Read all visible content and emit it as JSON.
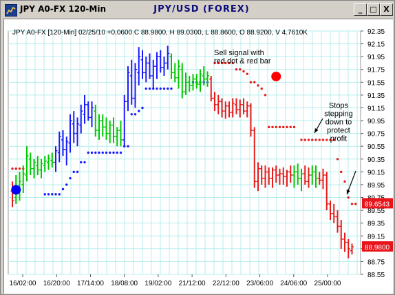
{
  "window": {
    "title": "JPY A0-FX 120-Min",
    "chart_title": "JPY/USD (FOREX)",
    "buttons": {
      "minimize": "_",
      "maximize": "□",
      "close": "X"
    }
  },
  "chart_data": {
    "type": "bar",
    "subtype": "ohlc-price-bars-with-trailing-stop-dots",
    "header_text": "JPY A0-FX [120-Min] 02/25/10 +0.0600 C 88.9800, H 89.0300, L 88.8600, O 88.9200, V 4.7610K",
    "x_tick_labels": [
      "16/02:00",
      "16/20:00",
      "17/14:00",
      "18/08:00",
      "19/02:00",
      "21/12:00",
      "22/12:00",
      "23/06:00",
      "24/06:00",
      "25/00:00"
    ],
    "y_tick_labels": [
      "92.35",
      "92.15",
      "91.95",
      "91.75",
      "91.55",
      "91.35",
      "91.15",
      "90.95",
      "90.75",
      "90.55",
      "90.35",
      "90.15",
      "89.95",
      "89.75",
      "89.55",
      "89.35",
      "89.15",
      "88.95",
      "88.75",
      "88.55"
    ],
    "ylim": [
      88.55,
      92.35
    ],
    "grid": true,
    "price_labels": [
      {
        "value": 89.6543,
        "text": "89.6543",
        "color": "#e8141b"
      },
      {
        "value": 88.98,
        "text": "88.9800",
        "color": "#e8141b"
      }
    ],
    "annotations": [
      {
        "text": [
          "Sell signal with",
          "red dot & red bar"
        ],
        "value": 91.9
      },
      {
        "text": [
          "Stops",
          "stepping",
          "down to",
          "protect",
          "profit"
        ],
        "value": 91.12
      }
    ],
    "signal_markers": [
      {
        "color": "#0000ff",
        "index": 1,
        "value": 89.87
      },
      {
        "color": "#ff0000",
        "index": 73,
        "value": 91.64
      }
    ],
    "colors": {
      "up_bars": "#00c800",
      "down_bars": "#1a1aff",
      "sell_bars": "#e81a1a",
      "stop_dots_red": "#e81a1a",
      "stop_dots_blue": "#1a1aff",
      "grid": "#b4ecec"
    },
    "price_bars": [
      {
        "c": "red",
        "o": 89.85,
        "h": 90.0,
        "l": 89.6,
        "cl": 89.7
      },
      {
        "c": "green",
        "o": 89.75,
        "h": 90.1,
        "l": 89.65,
        "cl": 89.9
      },
      {
        "c": "green",
        "o": 89.88,
        "h": 90.15,
        "l": 89.7,
        "cl": 90.0
      },
      {
        "c": "green",
        "o": 89.95,
        "h": 90.25,
        "l": 89.82,
        "cl": 90.12
      },
      {
        "c": "green",
        "o": 90.1,
        "h": 90.55,
        "l": 90.0,
        "cl": 90.4
      },
      {
        "c": "green",
        "o": 90.35,
        "h": 90.45,
        "l": 90.1,
        "cl": 90.2
      },
      {
        "c": "green",
        "o": 90.2,
        "h": 90.35,
        "l": 90.05,
        "cl": 90.3
      },
      {
        "c": "green",
        "o": 90.25,
        "h": 90.4,
        "l": 90.1,
        "cl": 90.18
      },
      {
        "c": "green",
        "o": 90.18,
        "h": 90.35,
        "l": 90.05,
        "cl": 90.28
      },
      {
        "c": "green",
        "o": 90.25,
        "h": 90.4,
        "l": 90.15,
        "cl": 90.32
      },
      {
        "c": "green",
        "o": 90.3,
        "h": 90.42,
        "l": 90.18,
        "cl": 90.36
      },
      {
        "c": "green",
        "o": 90.33,
        "h": 90.45,
        "l": 90.22,
        "cl": 90.3
      },
      {
        "c": "blue",
        "o": 90.3,
        "h": 90.55,
        "l": 90.15,
        "cl": 90.48
      },
      {
        "c": "blue",
        "o": 90.45,
        "h": 90.78,
        "l": 90.3,
        "cl": 90.7
      },
      {
        "c": "blue",
        "o": 90.65,
        "h": 90.8,
        "l": 90.4,
        "cl": 90.5
      },
      {
        "c": "blue",
        "o": 90.5,
        "h": 90.7,
        "l": 90.25,
        "cl": 90.62
      },
      {
        "c": "blue",
        "o": 90.6,
        "h": 91.05,
        "l": 90.45,
        "cl": 90.95
      },
      {
        "c": "blue",
        "o": 90.9,
        "h": 91.1,
        "l": 90.6,
        "cl": 90.75
      },
      {
        "c": "blue",
        "o": 90.75,
        "h": 91.0,
        "l": 90.55,
        "cl": 90.9
      },
      {
        "c": "blue",
        "o": 90.88,
        "h": 91.2,
        "l": 90.75,
        "cl": 91.1
      },
      {
        "c": "blue",
        "o": 91.05,
        "h": 91.35,
        "l": 90.9,
        "cl": 91.2
      },
      {
        "c": "blue",
        "o": 91.2,
        "h": 91.25,
        "l": 90.95,
        "cl": 91.0
      },
      {
        "c": "blue",
        "o": 91.0,
        "h": 91.25,
        "l": 90.85,
        "cl": 91.15
      },
      {
        "c": "green",
        "o": 91.1,
        "h": 91.2,
        "l": 90.7,
        "cl": 90.8
      },
      {
        "c": "green",
        "o": 90.8,
        "h": 91.05,
        "l": 90.65,
        "cl": 90.95
      },
      {
        "c": "green",
        "o": 90.95,
        "h": 91.05,
        "l": 90.7,
        "cl": 90.85
      },
      {
        "c": "green",
        "o": 90.85,
        "h": 91.0,
        "l": 90.65,
        "cl": 90.75
      },
      {
        "c": "green",
        "o": 90.75,
        "h": 90.95,
        "l": 90.6,
        "cl": 90.88
      },
      {
        "c": "green",
        "o": 90.88,
        "h": 91.0,
        "l": 90.6,
        "cl": 90.7
      },
      {
        "c": "green",
        "o": 90.7,
        "h": 90.85,
        "l": 90.55,
        "cl": 90.8
      },
      {
        "c": "green",
        "o": 90.8,
        "h": 90.95,
        "l": 90.55,
        "cl": 90.65
      },
      {
        "c": "blue",
        "o": 90.65,
        "h": 91.35,
        "l": 90.55,
        "cl": 91.25
      },
      {
        "c": "blue",
        "o": 91.25,
        "h": 91.8,
        "l": 91.1,
        "cl": 91.7
      },
      {
        "c": "blue",
        "o": 91.65,
        "h": 91.9,
        "l": 91.2,
        "cl": 91.3
      },
      {
        "c": "blue",
        "o": 91.3,
        "h": 91.85,
        "l": 91.15,
        "cl": 91.75
      },
      {
        "c": "blue",
        "o": 91.7,
        "h": 92.1,
        "l": 91.5,
        "cl": 91.95
      },
      {
        "c": "blue",
        "o": 91.9,
        "h": 92.05,
        "l": 91.6,
        "cl": 91.7
      },
      {
        "c": "blue",
        "o": 91.7,
        "h": 91.95,
        "l": 91.55,
        "cl": 91.85
      },
      {
        "c": "blue",
        "o": 91.85,
        "h": 92.0,
        "l": 91.6,
        "cl": 91.65
      },
      {
        "c": "blue",
        "o": 91.65,
        "h": 91.9,
        "l": 91.45,
        "cl": 91.8
      },
      {
        "c": "blue",
        "o": 91.8,
        "h": 92.02,
        "l": 91.6,
        "cl": 91.95
      },
      {
        "c": "blue",
        "o": 91.95,
        "h": 92.05,
        "l": 91.7,
        "cl": 91.78
      },
      {
        "c": "blue",
        "o": 91.78,
        "h": 91.95,
        "l": 91.65,
        "cl": 91.85
      },
      {
        "c": "blue",
        "o": 91.85,
        "h": 92.12,
        "l": 91.75,
        "cl": 92.0
      },
      {
        "c": "green",
        "o": 91.95,
        "h": 92.0,
        "l": 91.6,
        "cl": 91.7
      },
      {
        "c": "green",
        "o": 91.7,
        "h": 91.85,
        "l": 91.55,
        "cl": 91.62
      },
      {
        "c": "green",
        "o": 91.62,
        "h": 91.9,
        "l": 91.45,
        "cl": 91.8
      },
      {
        "c": "green",
        "o": 91.75,
        "h": 91.85,
        "l": 91.3,
        "cl": 91.4
      },
      {
        "c": "green",
        "o": 91.4,
        "h": 91.7,
        "l": 91.35,
        "cl": 91.55
      },
      {
        "c": "green",
        "o": 91.55,
        "h": 91.65,
        "l": 91.4,
        "cl": 91.5
      },
      {
        "c": "green",
        "o": 91.5,
        "h": 91.68,
        "l": 91.42,
        "cl": 91.6
      },
      {
        "c": "green",
        "o": 91.6,
        "h": 91.68,
        "l": 91.45,
        "cl": 91.52
      },
      {
        "c": "green",
        "o": 91.52,
        "h": 91.75,
        "l": 91.4,
        "cl": 91.68
      },
      {
        "c": "green",
        "o": 91.65,
        "h": 91.8,
        "l": 91.5,
        "cl": 91.6
      },
      {
        "c": "green",
        "o": 91.6,
        "h": 91.72,
        "l": 91.48,
        "cl": 91.65
      },
      {
        "c": "red",
        "o": 91.6,
        "h": 91.65,
        "l": 91.25,
        "cl": 91.3
      },
      {
        "c": "red",
        "o": 91.3,
        "h": 91.4,
        "l": 91.1,
        "cl": 91.2
      },
      {
        "c": "red",
        "o": 91.2,
        "h": 91.35,
        "l": 91.05,
        "cl": 91.25
      },
      {
        "c": "red",
        "o": 91.25,
        "h": 91.3,
        "l": 91.0,
        "cl": 91.1
      },
      {
        "c": "red",
        "o": 91.1,
        "h": 91.25,
        "l": 90.98,
        "cl": 91.18
      },
      {
        "c": "red",
        "o": 91.18,
        "h": 91.25,
        "l": 91.0,
        "cl": 91.08
      },
      {
        "c": "red",
        "o": 91.08,
        "h": 91.3,
        "l": 91.0,
        "cl": 91.22
      },
      {
        "c": "red",
        "o": 91.2,
        "h": 91.3,
        "l": 91.05,
        "cl": 91.12
      },
      {
        "c": "red",
        "o": 91.12,
        "h": 91.28,
        "l": 91.0,
        "cl": 91.2
      },
      {
        "c": "red",
        "o": 91.2,
        "h": 91.3,
        "l": 91.05,
        "cl": 91.1
      },
      {
        "c": "red",
        "o": 91.1,
        "h": 91.25,
        "l": 91.0,
        "cl": 91.18
      },
      {
        "c": "red",
        "o": 91.18,
        "h": 91.22,
        "l": 90.7,
        "cl": 90.8
      },
      {
        "c": "red",
        "o": 90.8,
        "h": 90.85,
        "l": 89.9,
        "cl": 90.0
      },
      {
        "c": "red",
        "o": 90.0,
        "h": 90.3,
        "l": 89.85,
        "cl": 90.2
      },
      {
        "c": "red",
        "o": 90.2,
        "h": 90.25,
        "l": 89.95,
        "cl": 90.05
      },
      {
        "c": "red",
        "o": 90.05,
        "h": 90.25,
        "l": 89.9,
        "cl": 90.15
      },
      {
        "c": "red",
        "o": 90.15,
        "h": 90.22,
        "l": 89.95,
        "cl": 90.05
      },
      {
        "c": "red",
        "o": 90.05,
        "h": 90.22,
        "l": 89.9,
        "cl": 90.18
      },
      {
        "c": "red",
        "o": 90.18,
        "h": 90.25,
        "l": 89.98,
        "cl": 90.1
      },
      {
        "c": "red",
        "o": 90.1,
        "h": 90.2,
        "l": 89.95,
        "cl": 90.12
      },
      {
        "c": "red",
        "o": 90.12,
        "h": 90.22,
        "l": 89.95,
        "cl": 90.08
      },
      {
        "c": "red",
        "o": 90.08,
        "h": 90.18,
        "l": 89.92,
        "cl": 90.15
      },
      {
        "c": "red",
        "o": 90.15,
        "h": 90.25,
        "l": 89.98,
        "cl": 90.1
      },
      {
        "c": "green",
        "o": 90.1,
        "h": 90.25,
        "l": 89.9,
        "cl": 90.15
      },
      {
        "c": "green",
        "o": 90.15,
        "h": 90.28,
        "l": 89.95,
        "cl": 90.05
      },
      {
        "c": "green",
        "o": 90.05,
        "h": 90.2,
        "l": 89.85,
        "cl": 90.12
      },
      {
        "c": "red",
        "o": 90.12,
        "h": 90.25,
        "l": 89.95,
        "cl": 90.0
      },
      {
        "c": "red",
        "o": 90.0,
        "h": 90.22,
        "l": 89.9,
        "cl": 90.1
      },
      {
        "c": "green",
        "o": 90.1,
        "h": 90.25,
        "l": 89.95,
        "cl": 90.15
      },
      {
        "c": "green",
        "o": 90.15,
        "h": 90.25,
        "l": 89.9,
        "cl": 90.05
      },
      {
        "c": "red",
        "o": 90.05,
        "h": 90.15,
        "l": 89.95,
        "cl": 90.02
      },
      {
        "c": "red",
        "o": 90.02,
        "h": 90.2,
        "l": 89.88,
        "cl": 90.1
      },
      {
        "c": "red",
        "o": 90.1,
        "h": 90.15,
        "l": 89.55,
        "cl": 89.65
      },
      {
        "c": "red",
        "o": 89.65,
        "h": 89.7,
        "l": 89.4,
        "cl": 89.5
      },
      {
        "c": "red",
        "o": 89.5,
        "h": 89.65,
        "l": 89.35,
        "cl": 89.45
      },
      {
        "c": "red",
        "o": 89.45,
        "h": 89.55,
        "l": 89.2,
        "cl": 89.3
      },
      {
        "c": "red",
        "o": 89.3,
        "h": 89.4,
        "l": 88.95,
        "cl": 89.1
      },
      {
        "c": "red",
        "o": 89.1,
        "h": 89.2,
        "l": 88.9,
        "cl": 89.05
      },
      {
        "c": "red",
        "o": 89.05,
        "h": 89.1,
        "l": 88.8,
        "cl": 88.95
      },
      {
        "c": "red",
        "o": 88.92,
        "h": 89.03,
        "l": 88.86,
        "cl": 88.98
      }
    ],
    "stop_dots": [
      {
        "c": "red",
        "i": 0,
        "v": 90.2
      },
      {
        "c": "red",
        "i": 1,
        "v": 90.2
      },
      {
        "c": "red",
        "i": 2,
        "v": 90.2
      },
      {
        "c": "red",
        "i": 3,
        "v": 90.2
      },
      {
        "c": "blue",
        "i": 9,
        "v": 89.8
      },
      {
        "c": "blue",
        "i": 10,
        "v": 89.8
      },
      {
        "c": "blue",
        "i": 11,
        "v": 89.8
      },
      {
        "c": "blue",
        "i": 12,
        "v": 89.8
      },
      {
        "c": "blue",
        "i": 13,
        "v": 89.8
      },
      {
        "c": "blue",
        "i": 14,
        "v": 89.88
      },
      {
        "c": "blue",
        "i": 15,
        "v": 89.95
      },
      {
        "c": "blue",
        "i": 16,
        "v": 90.05
      },
      {
        "c": "blue",
        "i": 17,
        "v": 90.15
      },
      {
        "c": "blue",
        "i": 18,
        "v": 90.15
      },
      {
        "c": "blue",
        "i": 19,
        "v": 90.3
      },
      {
        "c": "blue",
        "i": 20,
        "v": 90.3
      },
      {
        "c": "blue",
        "i": 21,
        "v": 90.45
      },
      {
        "c": "blue",
        "i": 22,
        "v": 90.45
      },
      {
        "c": "blue",
        "i": 23,
        "v": 90.45
      },
      {
        "c": "blue",
        "i": 24,
        "v": 90.45
      },
      {
        "c": "blue",
        "i": 25,
        "v": 90.45
      },
      {
        "c": "blue",
        "i": 26,
        "v": 90.45
      },
      {
        "c": "blue",
        "i": 27,
        "v": 90.45
      },
      {
        "c": "blue",
        "i": 28,
        "v": 90.45
      },
      {
        "c": "blue",
        "i": 29,
        "v": 90.45
      },
      {
        "c": "blue",
        "i": 30,
        "v": 90.45
      },
      {
        "c": "blue",
        "i": 31,
        "v": 90.55
      },
      {
        "c": "blue",
        "i": 32,
        "v": 90.55
      },
      {
        "c": "blue",
        "i": 33,
        "v": 91.05
      },
      {
        "c": "blue",
        "i": 34,
        "v": 91.05
      },
      {
        "c": "blue",
        "i": 35,
        "v": 91.1
      },
      {
        "c": "blue",
        "i": 36,
        "v": 91.15
      },
      {
        "c": "blue",
        "i": 37,
        "v": 91.45
      },
      {
        "c": "blue",
        "i": 38,
        "v": 91.45
      },
      {
        "c": "blue",
        "i": 39,
        "v": 91.45
      },
      {
        "c": "blue",
        "i": 40,
        "v": 91.45
      },
      {
        "c": "blue",
        "i": 41,
        "v": 91.45
      },
      {
        "c": "blue",
        "i": 42,
        "v": 91.45
      },
      {
        "c": "blue",
        "i": 43,
        "v": 91.45
      },
      {
        "c": "blue",
        "i": 44,
        "v": 91.45
      },
      {
        "c": "blue",
        "i": 50,
        "v": 91.55
      },
      {
        "c": "blue",
        "i": 51,
        "v": 91.55
      },
      {
        "c": "blue",
        "i": 52,
        "v": 91.55
      },
      {
        "c": "blue",
        "i": 53,
        "v": 91.55
      },
      {
        "c": "blue",
        "i": 54,
        "v": 91.55
      },
      {
        "c": "red",
        "i": 56,
        "v": 91.85
      },
      {
        "c": "red",
        "i": 57,
        "v": 91.85
      },
      {
        "c": "red",
        "i": 58,
        "v": 91.85
      },
      {
        "c": "red",
        "i": 59,
        "v": 91.85
      },
      {
        "c": "red",
        "i": 60,
        "v": 91.85
      },
      {
        "c": "red",
        "i": 61,
        "v": 91.85
      },
      {
        "c": "red",
        "i": 62,
        "v": 91.75
      },
      {
        "c": "red",
        "i": 63,
        "v": 91.75
      },
      {
        "c": "red",
        "i": 64,
        "v": 91.72
      },
      {
        "c": "red",
        "i": 65,
        "v": 91.68
      },
      {
        "c": "red",
        "i": 66,
        "v": 91.55
      },
      {
        "c": "red",
        "i": 67,
        "v": 91.55
      },
      {
        "c": "red",
        "i": 68,
        "v": 91.5
      },
      {
        "c": "red",
        "i": 69,
        "v": 91.45
      },
      {
        "c": "red",
        "i": 70,
        "v": 91.35
      },
      {
        "c": "red",
        "i": 71,
        "v": 90.85
      },
      {
        "c": "red",
        "i": 72,
        "v": 90.85
      },
      {
        "c": "red",
        "i": 73,
        "v": 90.85
      },
      {
        "c": "red",
        "i": 74,
        "v": 90.85
      },
      {
        "c": "red",
        "i": 75,
        "v": 90.85
      },
      {
        "c": "red",
        "i": 76,
        "v": 90.85
      },
      {
        "c": "red",
        "i": 77,
        "v": 90.85
      },
      {
        "c": "red",
        "i": 78,
        "v": 90.85
      },
      {
        "c": "red",
        "i": 80,
        "v": 90.65
      },
      {
        "c": "red",
        "i": 81,
        "v": 90.65
      },
      {
        "c": "red",
        "i": 82,
        "v": 90.65
      },
      {
        "c": "red",
        "i": 83,
        "v": 90.65
      },
      {
        "c": "red",
        "i": 84,
        "v": 90.65
      },
      {
        "c": "red",
        "i": 85,
        "v": 90.65
      },
      {
        "c": "red",
        "i": 86,
        "v": 90.65
      },
      {
        "c": "red",
        "i": 87,
        "v": 90.65
      },
      {
        "c": "red",
        "i": 88,
        "v": 90.65
      },
      {
        "c": "red",
        "i": 89,
        "v": 90.65
      },
      {
        "c": "red",
        "i": 90,
        "v": 90.35
      },
      {
        "c": "red",
        "i": 91,
        "v": 90.15
      },
      {
        "c": "red",
        "i": 92,
        "v": 90.0
      },
      {
        "c": "red",
        "i": 93,
        "v": 89.75
      },
      {
        "c": "red",
        "i": 94,
        "v": 89.65
      },
      {
        "c": "red",
        "i": 95,
        "v": 89.65
      }
    ]
  }
}
